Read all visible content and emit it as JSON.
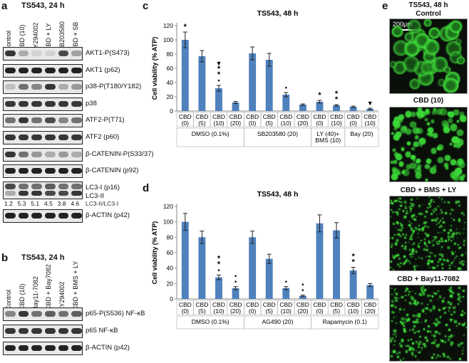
{
  "panels": {
    "a": {
      "letter": "a",
      "title": "TS543, 24 h",
      "lanes": [
        "Control",
        "CBD (10)",
        "LY294002",
        "CBD + LY",
        "SB203580",
        "CBD + SB"
      ],
      "rows": [
        "AKT1-P(S473)",
        "AKT1 (p62)",
        "p38-P(T180/Y182)",
        "p38",
        "ATF2-P(T71)",
        "ATF2 (p60)",
        "β-CATENIN-P(S33/37)",
        "β-CATENIN (p92)",
        "LC3-I (p16)",
        "LC3-II",
        "β-ACTIN (p42)"
      ],
      "ratios": [
        "1.2",
        "5.3",
        "5.1",
        "4.5",
        "3.8",
        "4.6"
      ],
      "ratio_label": "LC3-II/LC3-I"
    },
    "b": {
      "letter": "b",
      "title": "TS543, 24 h",
      "lanes": [
        "Control",
        "CBD (10)",
        "Bay11-7082",
        "CBD + Bay7082",
        "LY294002",
        "CBD + BMS + LY"
      ],
      "rows": [
        "p65-P(S536) NF-κB",
        "p65 NF-κB",
        "β-ACTIN (p42)"
      ]
    },
    "c": {
      "letter": "c"
    },
    "d": {
      "letter": "d"
    },
    "e": {
      "letter": "e",
      "images": [
        {
          "title": "TS543, 48 h",
          "subtitle": "Control",
          "scale": "200μm"
        },
        {
          "title": "CBD (10)"
        },
        {
          "title": "CBD + BMS + LY"
        },
        {
          "title": "CBD + Bay11-7082"
        }
      ]
    }
  },
  "chart_data": [
    {
      "type": "bar",
      "title": "TS543, 48 h",
      "ylabel": "Cell viability (% ATP)",
      "ylim": [
        0,
        120
      ],
      "yticks": [
        0,
        20,
        40,
        60,
        80,
        100,
        120
      ],
      "categories": [
        "CBD\n(0)",
        "CBD\n(5)",
        "CBD\n(10)",
        "CBD\n(20)",
        "CBD\n(0)",
        "CBD\n(5)",
        "CBD\n(10)",
        "CBD\n(20)",
        "CBD\n(0)",
        "CBD\n(10)",
        "CBD\n(0)",
        "CBD\n(10)"
      ],
      "values": [
        100,
        77,
        32,
        12,
        81,
        72,
        23,
        9,
        13,
        8,
        6,
        3
      ],
      "errors": [
        11,
        8,
        4,
        1.5,
        9,
        9,
        3,
        1,
        2,
        1,
        1,
        1
      ],
      "annotations": [
        "*",
        "",
        "▼\n*\n*\n•",
        "",
        "",
        "",
        "•",
        "",
        "*",
        "*\n*",
        "",
        "▼"
      ],
      "groups": [
        {
          "label": "DMSO (0.1%)",
          "span": [
            0,
            3
          ]
        },
        {
          "label": "SB203580 (20)",
          "span": [
            4,
            7
          ]
        },
        {
          "label": "LY (40)+\nBMS (10)",
          "span": [
            8,
            9
          ]
        },
        {
          "label": "Bay (20)",
          "span": [
            10,
            11
          ]
        }
      ],
      "grid": false,
      "color": "#4f81bd"
    },
    {
      "type": "bar",
      "title": "TS543, 48 h",
      "ylabel": "Cell viability (% ATP)",
      "ylim": [
        0,
        120
      ],
      "yticks": [
        0,
        20,
        40,
        60,
        80,
        100,
        120
      ],
      "categories": [
        "CBD\n(0)",
        "CBD\n(5)",
        "CBD\n(10)",
        "CBD\n(20)",
        "CBD\n(0)",
        "CBD\n(5)",
        "CBD\n(10)",
        "CBD\n(20)",
        "CBD\n(0)",
        "CBD\n(5)",
        "CBD\n(10)",
        "CBD\n(20)"
      ],
      "values": [
        100,
        80,
        28,
        14,
        80,
        52,
        14,
        4,
        98,
        89,
        37,
        18
      ],
      "errors": [
        11,
        8,
        3,
        2,
        8,
        6,
        2,
        1,
        11,
        10,
        4,
        2
      ],
      "annotations": [
        "",
        "",
        "*\n*\n•",
        "•\n•",
        "",
        "",
        "•",
        "•\n•",
        "",
        "",
        "*\n*",
        ""
      ],
      "groups": [
        {
          "label": "DMSO (0.1%)",
          "span": [
            0,
            3
          ]
        },
        {
          "label": "AG490 (20)",
          "span": [
            4,
            7
          ]
        },
        {
          "label": "Rapamycin (0.1)",
          "span": [
            8,
            11
          ]
        }
      ],
      "grid": false,
      "color": "#4f81bd"
    }
  ]
}
